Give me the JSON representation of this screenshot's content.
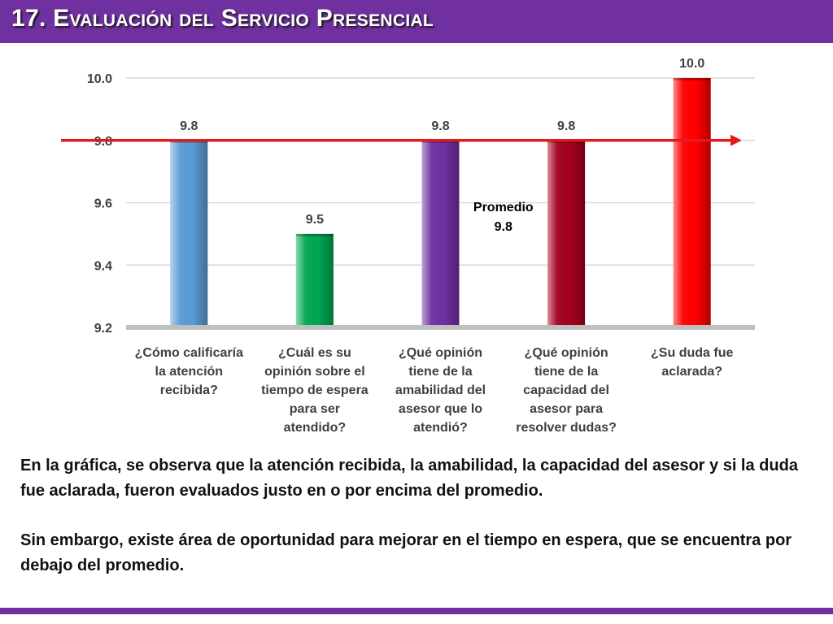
{
  "page": {
    "title": "17. Evaluación del Servicio Presencial",
    "paragraphs": [
      "En la gráfica, se observa que la atención recibida, la amabilidad, la capacidad del asesor y si la duda fue aclarada, fueron evaluados justo en o por encima del promedio.",
      "Sin embargo, existe área de oportunidad para mejorar en el tiempo en espera, que se encuentra por debajo del promedio."
    ],
    "colors": {
      "title_bar": "#7030a0",
      "average_line": "#e31a1c"
    }
  },
  "chart_data": {
    "type": "bar",
    "categories": [
      [
        "¿Cómo calificaría",
        "la atención",
        "recibida?"
      ],
      [
        "¿Cuál es su",
        "opinión sobre el",
        "tiempo de espera",
        "para ser",
        "atendido?"
      ],
      [
        "¿Qué opinión",
        "tiene de la",
        "amabilidad del",
        "asesor que lo",
        "atendió?"
      ],
      [
        "¿Qué opinión",
        "tiene de la",
        "capacidad del",
        "asesor para",
        "resolver dudas?"
      ],
      [
        "¿Su duda fue",
        "aclarada?"
      ]
    ],
    "values": [
      9.8,
      9.5,
      9.8,
      9.8,
      10.0
    ],
    "value_labels": [
      "9.8",
      "9.5",
      "9.8",
      "9.8",
      "10.0"
    ],
    "colors": [
      "#5b9bd5",
      "#00a651",
      "#7030a0",
      "#a50021",
      "#ff0000"
    ],
    "ylim": [
      9.2,
      10.0
    ],
    "yticks": [
      9.2,
      9.4,
      9.6,
      9.8,
      10.0
    ],
    "ytick_labels": [
      "9.2",
      "9.4",
      "9.6",
      "9.8",
      "10.0"
    ],
    "grid": true,
    "average": {
      "value": 9.8,
      "label_lines": [
        "Promedio",
        "9.8"
      ]
    }
  }
}
